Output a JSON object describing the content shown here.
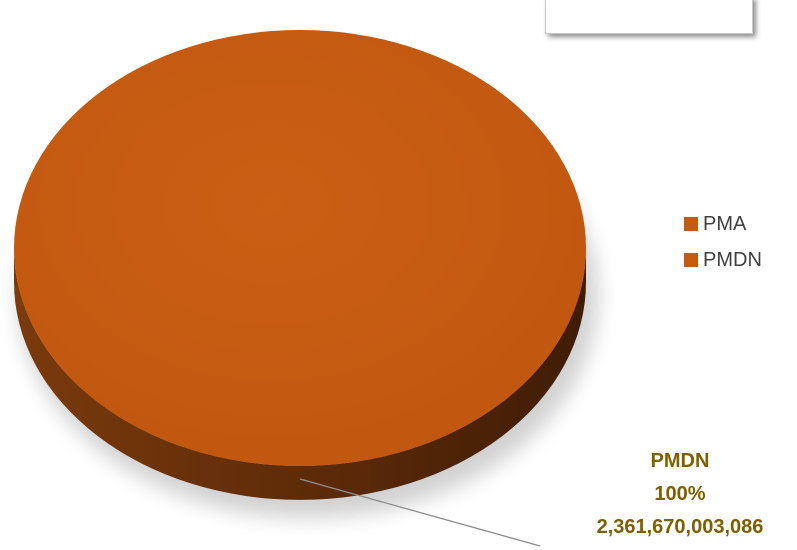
{
  "chart_data": {
    "type": "pie",
    "title": "",
    "categories": [
      "PMA",
      "PMDN"
    ],
    "values": [
      0,
      2361670003086
    ],
    "percentages": [
      "0%",
      "100%"
    ],
    "data_labels": [
      {
        "category": "PMDN",
        "percent": "100%",
        "value": "2,361,670,003,086"
      }
    ],
    "legend_placement": "right",
    "colors": {
      "PMA": "#c55a11",
      "PMDN": "#c55a11",
      "pie_top": "#c55a11",
      "pie_side": "#5c2a08",
      "label_text": "#7f6000",
      "leader_line": "#8c8c8c"
    }
  },
  "legend": {
    "items": [
      {
        "label": "PMA",
        "color": "#c55a11"
      },
      {
        "label": "PMDN",
        "color": "#c55a11"
      }
    ]
  },
  "data_label": {
    "category": "PMDN",
    "percent": "100%",
    "value": "2,361,670,003,086"
  }
}
